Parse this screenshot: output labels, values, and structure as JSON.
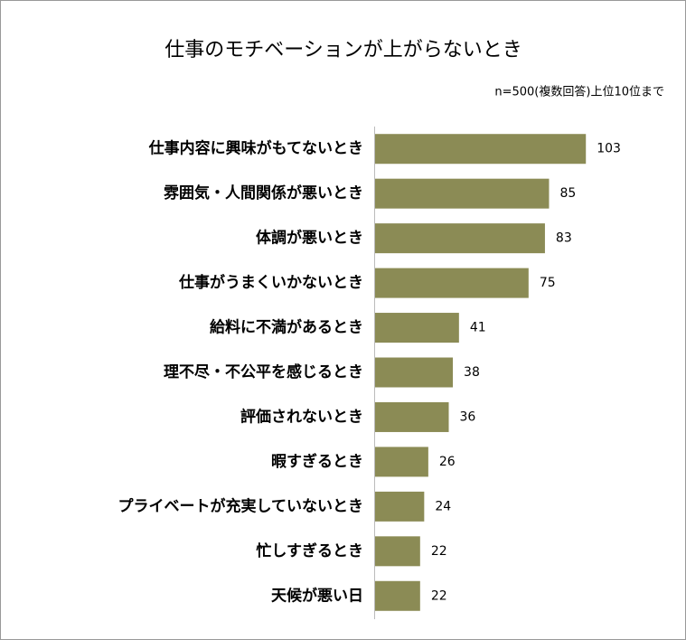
{
  "chart_data": {
    "type": "bar",
    "orientation": "horizontal",
    "title": "仕事のモチベーションが上がらないとき",
    "subtitle": "n=500(複数回答)上位10位まで",
    "categories": [
      "仕事内容に興味がもてないとき",
      "雰囲気・人間関係が悪いとき",
      "体調が悪いとき",
      "仕事がうまくいかないとき",
      "給料に不満があるとき",
      "理不尽・不公平を感じるとき",
      "評価されないとき",
      "暇すぎるとき",
      "プライベートが充実していないとき",
      "忙しすぎるとき",
      "天候が悪い日"
    ],
    "values": [
      103,
      85,
      83,
      75,
      41,
      38,
      36,
      26,
      24,
      22,
      22
    ],
    "color": "#8b8b55",
    "xlim": [
      0,
      140
    ]
  }
}
